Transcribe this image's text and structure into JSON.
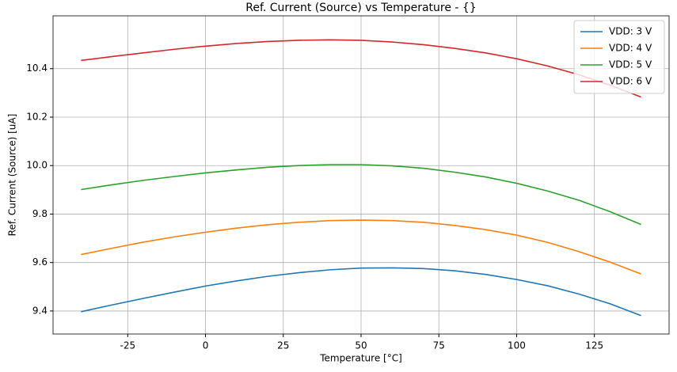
{
  "chart_data": {
    "type": "line",
    "title": "Ref. Current (Source) vs Temperature - {}",
    "x_label": "Temperature [°C]",
    "y_label": "Ref. Current (Source) [uA]",
    "x": [
      -40,
      -30,
      -20,
      -10,
      0,
      10,
      20,
      30,
      40,
      50,
      60,
      70,
      80,
      90,
      100,
      110,
      120,
      130,
      140
    ],
    "series": [
      {
        "name": "VDD: 3 V",
        "color": "#1f77b4",
        "values": [
          9.397,
          9.425,
          9.452,
          9.478,
          9.503,
          9.524,
          9.543,
          9.558,
          9.57,
          9.577,
          9.578,
          9.575,
          9.566,
          9.551,
          9.53,
          9.504,
          9.47,
          9.43,
          9.381
        ]
      },
      {
        "name": "VDD: 4 V",
        "color": "#ff7f0e",
        "values": [
          9.633,
          9.659,
          9.684,
          9.706,
          9.725,
          9.742,
          9.756,
          9.766,
          9.773,
          9.775,
          9.773,
          9.766,
          9.753,
          9.736,
          9.713,
          9.683,
          9.645,
          9.602,
          9.553
        ]
      },
      {
        "name": "VDD: 5 V",
        "color": "#2ca02c",
        "values": [
          9.901,
          9.921,
          9.939,
          9.955,
          9.97,
          9.982,
          9.993,
          10.0,
          10.004,
          10.004,
          9.999,
          9.989,
          9.973,
          9.953,
          9.927,
          9.895,
          9.857,
          9.81,
          9.757
        ]
      },
      {
        "name": "VDD: 6 V",
        "color": "#d62728",
        "values": [
          10.434,
          10.45,
          10.465,
          10.48,
          10.493,
          10.504,
          10.512,
          10.517,
          10.519,
          10.517,
          10.51,
          10.499,
          10.484,
          10.465,
          10.441,
          10.411,
          10.375,
          10.332,
          10.283
        ]
      }
    ],
    "xlim": [
      -49,
      149
    ],
    "ylim": [
      9.305,
      10.618
    ],
    "xticks": [
      -25,
      0,
      25,
      50,
      75,
      100,
      125
    ],
    "yticks": [
      {
        "value": 9.4,
        "label": "9.4"
      },
      {
        "value": 9.6,
        "label": "9.6"
      },
      {
        "value": 9.8,
        "label": "9.8"
      },
      {
        "value": 10.0,
        "label": "10.0"
      },
      {
        "value": 10.2,
        "label": "10.2"
      },
      {
        "value": 10.4,
        "label": "10.4"
      }
    ],
    "grid": true,
    "legend": "upper-right"
  }
}
